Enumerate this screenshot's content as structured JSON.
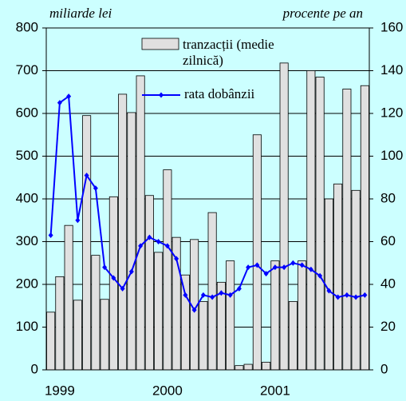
{
  "chart_data": {
    "type": "bar_line",
    "ylabel": "miliarde lei",
    "y2label": "procente pe an",
    "categories": [
      null,
      "1999",
      null,
      null,
      null,
      null,
      null,
      null,
      null,
      null,
      null,
      null,
      null,
      "2000",
      null,
      null,
      null,
      null,
      null,
      null,
      null,
      null,
      null,
      null,
      null,
      "2001",
      null,
      null,
      null,
      null,
      null,
      null,
      null,
      null,
      null,
      null
    ],
    "series": [
      {
        "name": "tranzacții (medie zilnică)",
        "type": "bar",
        "color": "#e0e0e0",
        "values": [
          135,
          218,
          338,
          163,
          595,
          268,
          165,
          405,
          645,
          602,
          688,
          408,
          275,
          468,
          310,
          222,
          305,
          160,
          368,
          205,
          255,
          10,
          13,
          550,
          18,
          255,
          718,
          160,
          255,
          700,
          685,
          400,
          435,
          657,
          420,
          665
        ]
      },
      {
        "name": "rata dobânzii",
        "type": "line",
        "axis": "y2",
        "color": "#0000ff",
        "values": [
          63,
          125,
          128,
          70,
          91,
          85,
          48,
          43,
          38,
          46,
          58,
          62,
          60,
          58,
          52,
          35,
          28,
          35,
          34,
          36,
          35,
          38,
          48,
          49,
          45,
          48,
          48,
          50,
          49,
          47,
          44,
          37,
          34,
          35,
          34,
          35
        ]
      }
    ],
    "ylim": [
      0,
      800
    ],
    "yticks": [
      0,
      100,
      200,
      300,
      400,
      500,
      600,
      700,
      800
    ],
    "y2lim": [
      0,
      160
    ],
    "y2ticks": [
      0,
      20,
      40,
      60,
      80,
      100,
      120,
      140,
      160
    ],
    "grid": true
  }
}
